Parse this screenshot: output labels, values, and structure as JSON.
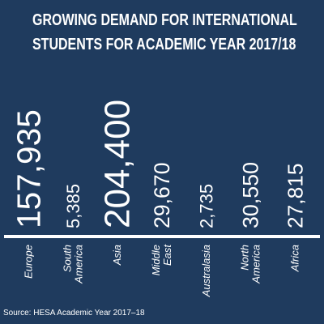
{
  "title": {
    "line1": "GROWING DEMAND FOR INTERNATIONAL",
    "line2": "STUDENTS FOR ACADEMIC YEAR 2017/18"
  },
  "source": "Source: HESA Academic Year 2017–18",
  "colors": {
    "background": "#1f3b5e",
    "text": "#ffffff"
  },
  "chart_data": {
    "type": "bar",
    "title": "GROWING DEMAND FOR INTERNATIONAL STUDENTS FOR ACADEMIC YEAR 2017/18",
    "categories": [
      "Europe",
      "South America",
      "Asia",
      "Middle East",
      "Australasia",
      "North America",
      "Africa"
    ],
    "category_lines": [
      [
        "Europe"
      ],
      [
        "South",
        "America"
      ],
      [
        "Asia"
      ],
      [
        "Middle",
        "East"
      ],
      [
        "Australasia"
      ],
      [
        "North",
        "America"
      ],
      [
        "Africa"
      ]
    ],
    "values": [
      157935,
      5385,
      204400,
      29670,
      2735,
      30550,
      27815
    ],
    "value_labels": [
      "157,935",
      "5,385",
      "204,400",
      "29,670",
      "2,735",
      "30,550",
      "27,815"
    ],
    "grid": false,
    "legend": "none"
  }
}
